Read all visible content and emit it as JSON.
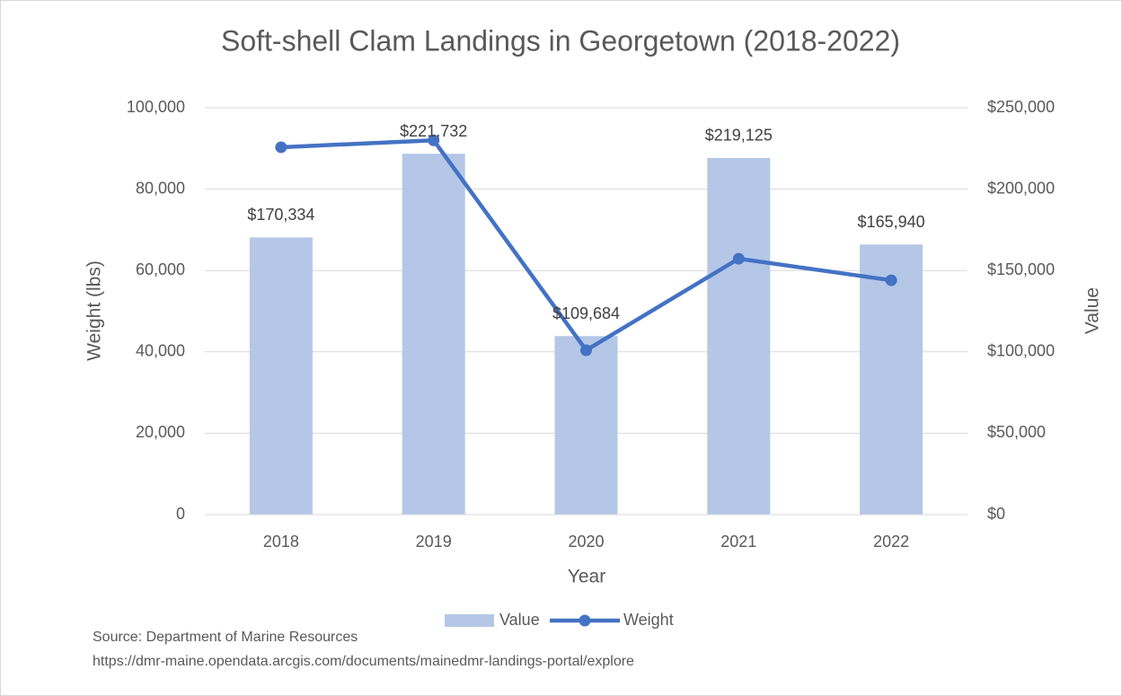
{
  "chart_data": {
    "type": "bar_line",
    "title": "Soft-shell Clam Landings in Georgetown (2018-2022)",
    "xlabel": "Year",
    "ylabel": "Weight (lbs)",
    "y2label": "Value",
    "categories": [
      "2018",
      "2019",
      "2020",
      "2021",
      "2022"
    ],
    "series": [
      {
        "name": "Value",
        "type": "bar",
        "axis": "y2",
        "color": "#b4c7e7",
        "values": [
          170334,
          221732,
          109684,
          219125,
          165940
        ],
        "value_labels": [
          "$170,334",
          "$221,732",
          "$109,684",
          "$219,125",
          "$165,940"
        ]
      },
      {
        "name": "Weight",
        "type": "line",
        "axis": "y",
        "color": "#4472c4",
        "values": [
          90300,
          92000,
          40400,
          62900,
          57600
        ]
      }
    ],
    "ylim": [
      0,
      100000
    ],
    "yticks": [
      0,
      {
        "value": 20000,
        "label": "20,000"
      },
      {
        "value": 40000,
        "label": "40,000"
      },
      {
        "value": 60000,
        "label": "60,000"
      },
      {
        "value": 80000,
        "label": "80,000"
      },
      {
        "value": 100000,
        "label": "100,000"
      }
    ],
    "y2lim": [
      0,
      250000
    ],
    "y2ticks": [
      {
        "value": 0,
        "label": "$0"
      },
      {
        "value": 50000,
        "label": "$50,000"
      },
      {
        "value": 100000,
        "label": "$100,000"
      },
      {
        "value": 150000,
        "label": "$150,000"
      },
      {
        "value": 200000,
        "label": "$200,000"
      },
      {
        "value": 250000,
        "label": "$250,000"
      }
    ],
    "grid": true,
    "legend": "bottom",
    "notes": [
      "Source: Department of Marine Resources",
      "https://dmr-maine.opendata.arcgis.com/documents/mainedmr-landings-portal/explore"
    ]
  }
}
